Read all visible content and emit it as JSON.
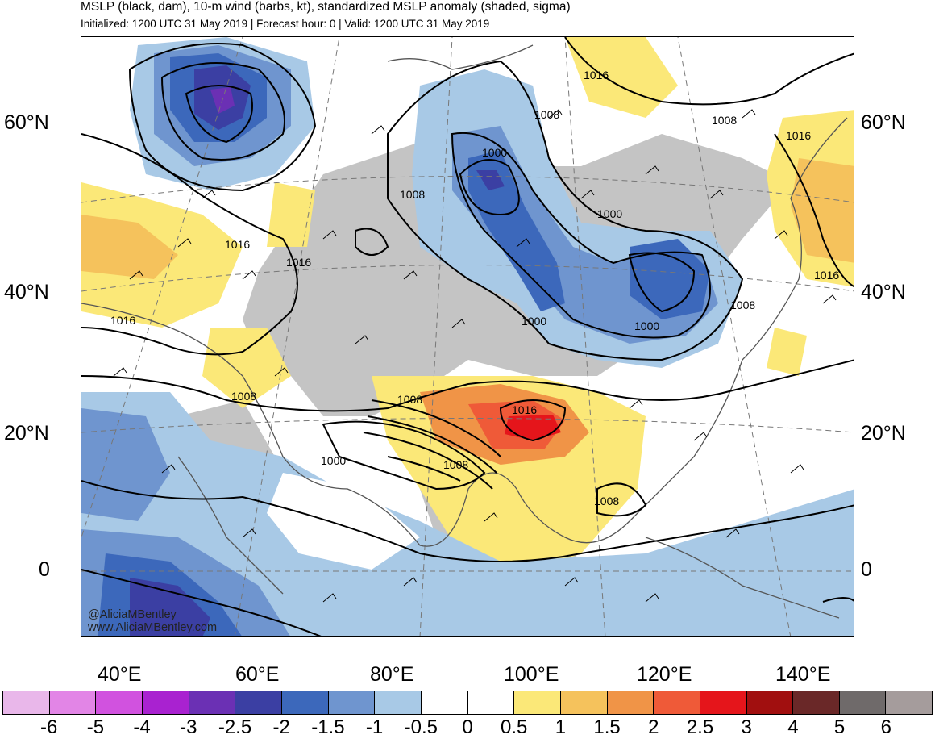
{
  "header": {
    "title": "MSLP (black, dam), 10-m wind (barbs, kt), standardized MSLP anomaly (shaded, sigma)",
    "subtitle": "Initialized: 1200 UTC 31 May 2019 | Forecast hour: 0 | Valid: 1200 UTC 31 May 2019"
  },
  "map": {
    "credit_handle": "@AliciaMBentley",
    "credit_site": "www.AliciaMBentley.com",
    "lat_labels": [
      "60°N",
      "40°N",
      "20°N",
      "0"
    ],
    "lon_labels": [
      "40°E",
      "60°E",
      "80°E",
      "100°E",
      "120°E",
      "140°E"
    ],
    "contour_labels": [
      "1016",
      "1008",
      "1008",
      "1016",
      "1000",
      "1008",
      "1000",
      "1016",
      "1016",
      "1016",
      "1016",
      "1000",
      "1000",
      "1008",
      "1008",
      "1016",
      "1008",
      "1000",
      "1008",
      "1008"
    ]
  },
  "colorbar": {
    "labels": [
      "-6",
      "-5",
      "-4",
      "-3",
      "-2.5",
      "-2",
      "-1.5",
      "-1",
      "-0.5",
      "0",
      "0.5",
      "1",
      "1.5",
      "2",
      "2.5",
      "3",
      "4",
      "5",
      "6"
    ],
    "colors": [
      "#e9b7ea",
      "#e285e6",
      "#d152df",
      "#a922d0",
      "#6b30b4",
      "#3b3fa3",
      "#3c68bb",
      "#6f95cf",
      "#a8c9e6",
      "#ffffff",
      "#ffffff",
      "#fbe878",
      "#f5c25c",
      "#f09447",
      "#ef5a38",
      "#e5151b",
      "#a10f0f",
      "#6a2828",
      "#6f6a6a",
      "#a59c9c"
    ]
  }
}
